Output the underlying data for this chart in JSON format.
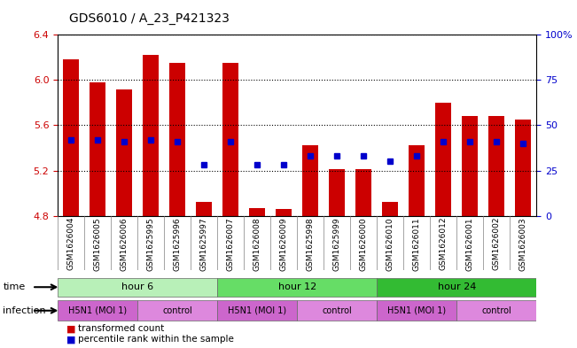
{
  "title": "GDS6010 / A_23_P421323",
  "samples": [
    "GSM1626004",
    "GSM1626005",
    "GSM1626006",
    "GSM1625995",
    "GSM1625996",
    "GSM1625997",
    "GSM1626007",
    "GSM1626008",
    "GSM1626009",
    "GSM1625998",
    "GSM1625999",
    "GSM1626000",
    "GSM1626010",
    "GSM1626011",
    "GSM1626012",
    "GSM1626001",
    "GSM1626002",
    "GSM1626003"
  ],
  "bar_values": [
    6.18,
    5.98,
    5.92,
    6.22,
    6.15,
    4.92,
    6.15,
    4.87,
    4.86,
    5.42,
    5.21,
    5.21,
    4.92,
    5.42,
    5.8,
    5.68,
    5.68,
    5.65
  ],
  "blue_values": [
    0.42,
    0.42,
    0.41,
    0.42,
    0.41,
    0.28,
    0.41,
    0.28,
    0.28,
    0.33,
    0.33,
    0.33,
    0.3,
    0.33,
    0.41,
    0.41,
    0.41,
    0.4
  ],
  "ymin": 4.8,
  "ymax": 6.4,
  "yticks": [
    4.8,
    5.2,
    5.6,
    6.0,
    6.4
  ],
  "right_yticks": [
    0,
    25,
    50,
    75,
    100
  ],
  "right_yticklabels": [
    "0",
    "25",
    "50",
    "75",
    "100%"
  ],
  "bar_color": "#cc0000",
  "blue_color": "#0000cc",
  "bar_bottom": 4.8,
  "time_groups": [
    {
      "label": "hour 6",
      "start": 0,
      "end": 6,
      "color": "#ccffcc"
    },
    {
      "label": "hour 12",
      "start": 6,
      "end": 12,
      "color": "#66dd66"
    },
    {
      "label": "hour 24",
      "start": 12,
      "end": 18,
      "color": "#44cc44"
    }
  ],
  "infection_groups": [
    {
      "label": "H5N1 (MOI 1)",
      "start": 0,
      "end": 3,
      "color": "#dd66dd"
    },
    {
      "label": "control",
      "start": 3,
      "end": 6,
      "color": "#dd66dd"
    },
    {
      "label": "H5N1 (MOI 1)",
      "start": 6,
      "end": 9,
      "color": "#dd66dd"
    },
    {
      "label": "control",
      "start": 9,
      "end": 12,
      "color": "#dd66dd"
    },
    {
      "label": "H5N1 (MOI 1)",
      "start": 12,
      "end": 15,
      "color": "#dd66dd"
    },
    {
      "label": "control",
      "start": 15,
      "end": 18,
      "color": "#dd66dd"
    }
  ],
  "time_label": "time",
  "infection_label": "infection",
  "legend_bar": "transformed count",
  "legend_blue": "percentile rank within the sample",
  "xlabel_color": "#cc0000",
  "ylabel_color": "#cc0000",
  "right_ylabel_color": "#0000cc"
}
